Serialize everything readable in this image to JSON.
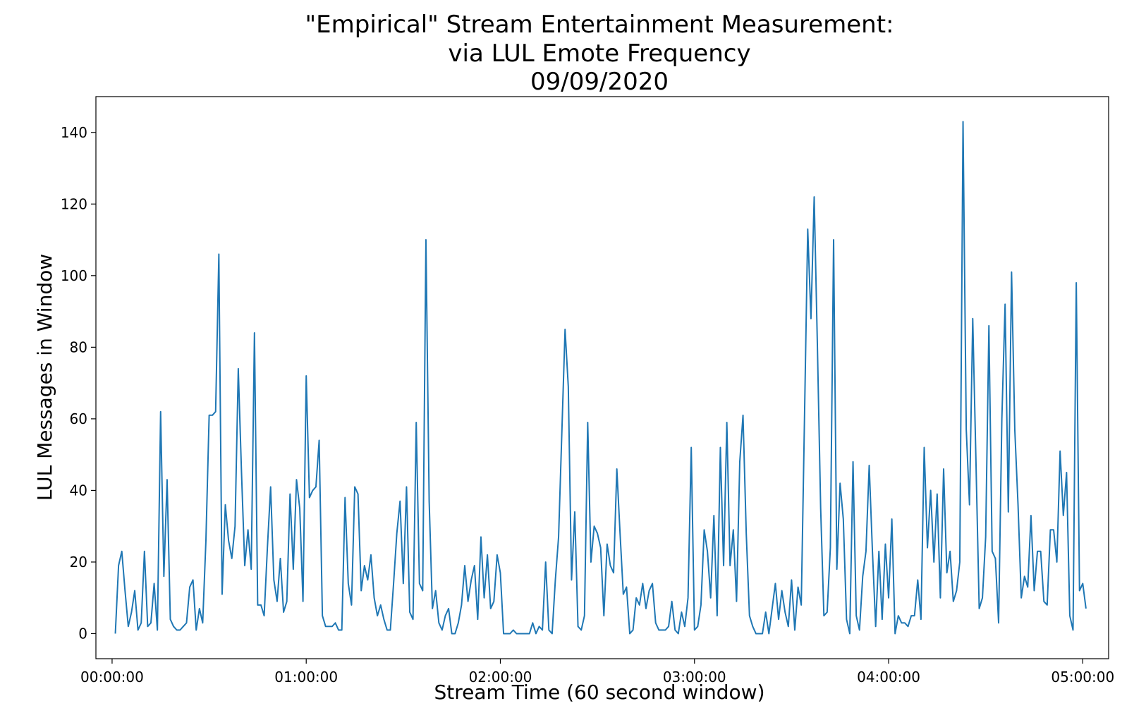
{
  "chart_data": {
    "type": "line",
    "title": "\"Empirical\" Stream Entertainment Measurement:\nvia LUL Emote Frequency\n09/09/2020",
    "title_lines": [
      "\"Empirical\" Stream Entertainment Measurement:",
      "via LUL Emote Frequency",
      "09/09/2020"
    ],
    "xlabel": "Stream Time (60 second window)",
    "ylabel": "LUL Messages in Window",
    "x_unit": "minutes since stream start",
    "xlim": [
      -5,
      308
    ],
    "ylim": [
      -7,
      150
    ],
    "x_ticks": [
      {
        "value": 0,
        "label": "00:00:00"
      },
      {
        "value": 60,
        "label": "01:00:00"
      },
      {
        "value": 120,
        "label": "02:00:00"
      },
      {
        "value": 180,
        "label": "03:00:00"
      },
      {
        "value": 240,
        "label": "04:00:00"
      },
      {
        "value": 300,
        "label": "05:00:00"
      }
    ],
    "y_ticks": [
      {
        "value": 0,
        "label": "0"
      },
      {
        "value": 20,
        "label": "20"
      },
      {
        "value": 40,
        "label": "40"
      },
      {
        "value": 60,
        "label": "60"
      },
      {
        "value": 80,
        "label": "80"
      },
      {
        "value": 100,
        "label": "100"
      },
      {
        "value": 120,
        "label": "120"
      },
      {
        "value": 140,
        "label": "140"
      }
    ],
    "grid": false,
    "series": [
      {
        "color": "#1f77b4",
        "x": [
          1,
          2,
          3,
          4,
          5,
          6,
          7,
          8,
          9,
          10,
          11,
          12,
          13,
          14,
          15,
          16,
          17,
          18,
          19,
          20,
          21,
          22,
          23,
          24,
          25,
          26,
          27,
          28,
          29,
          30,
          31,
          32,
          33,
          34,
          35,
          36,
          37,
          38,
          39,
          40,
          41,
          42,
          43,
          44,
          45,
          46,
          47,
          48,
          49,
          50,
          51,
          52,
          53,
          54,
          55,
          56,
          57,
          58,
          59,
          60,
          61,
          62,
          63,
          64,
          65,
          66,
          67,
          68,
          69,
          70,
          71,
          72,
          73,
          74,
          75,
          76,
          77,
          78,
          79,
          80,
          81,
          82,
          83,
          84,
          85,
          86,
          87,
          88,
          89,
          90,
          91,
          92,
          93,
          94,
          95,
          96,
          97,
          98,
          99,
          100,
          101,
          102,
          103,
          104,
          105,
          106,
          107,
          108,
          109,
          110,
          111,
          112,
          113,
          114,
          115,
          116,
          117,
          118,
          119,
          120,
          121,
          122,
          123,
          124,
          125,
          126,
          127,
          128,
          129,
          130,
          131,
          132,
          133,
          134,
          135,
          136,
          137,
          138,
          139,
          140,
          141,
          142,
          143,
          144,
          145,
          146,
          147,
          148,
          149,
          150,
          151,
          152,
          153,
          154,
          155,
          156,
          157,
          158,
          159,
          160,
          161,
          162,
          163,
          164,
          165,
          166,
          167,
          168,
          169,
          170,
          171,
          172,
          173,
          174,
          175,
          176,
          177,
          178,
          179,
          180,
          181,
          182,
          183,
          184,
          185,
          186,
          187,
          188,
          189,
          190,
          191,
          192,
          193,
          194,
          195,
          196,
          197,
          198,
          199,
          200,
          201,
          202,
          203,
          204,
          205,
          206,
          207,
          208,
          209,
          210,
          211,
          212,
          213,
          214,
          215,
          216,
          217,
          218,
          219,
          220,
          221,
          222,
          223,
          224,
          225,
          226,
          227,
          228,
          229,
          230,
          231,
          232,
          233,
          234,
          235,
          236,
          237,
          238,
          239,
          240,
          241,
          242,
          243,
          244,
          245,
          246,
          247,
          248,
          249,
          250,
          251,
          252,
          253,
          254,
          255,
          256,
          257,
          258,
          259,
          260,
          261,
          262,
          263,
          264,
          265,
          266,
          267,
          268,
          269,
          270,
          271,
          272,
          273,
          274,
          275,
          276,
          277,
          278,
          279,
          280,
          281,
          282,
          283,
          284,
          285,
          286,
          287,
          288,
          289,
          290,
          291,
          292,
          293,
          294,
          295,
          296,
          297,
          298,
          299,
          300,
          301
        ],
        "values": [
          0,
          19,
          23,
          12,
          2,
          6,
          12,
          1,
          3,
          23,
          2,
          3,
          14,
          1,
          62,
          16,
          43,
          4,
          2,
          1,
          1,
          2,
          3,
          13,
          15,
          1,
          7,
          3,
          26,
          61,
          61,
          62,
          106,
          11,
          36,
          26,
          21,
          30,
          74,
          45,
          19,
          29,
          18,
          84,
          8,
          8,
          5,
          24,
          41,
          15,
          9,
          21,
          6,
          9,
          39,
          18,
          43,
          35,
          9,
          72,
          38,
          40,
          41,
          54,
          5,
          2,
          2,
          2,
          3,
          1,
          1,
          38,
          14,
          8,
          41,
          39,
          12,
          19,
          15,
          22,
          10,
          5,
          8,
          4,
          1,
          1,
          14,
          28,
          37,
          14,
          41,
          6,
          4,
          59,
          14,
          12,
          110,
          37,
          7,
          12,
          3,
          1,
          5,
          7,
          0,
          0,
          3,
          8,
          19,
          9,
          15,
          19,
          4,
          27,
          10,
          22,
          7,
          9,
          22,
          17,
          0,
          0,
          0,
          1,
          0,
          0,
          0,
          0,
          0,
          3,
          0,
          2,
          1,
          20,
          1,
          0,
          15,
          27,
          56,
          85,
          69,
          15,
          34,
          2,
          1,
          5,
          59,
          20,
          30,
          28,
          24,
          5,
          25,
          19,
          17,
          46,
          28,
          11,
          13,
          0,
          1,
          10,
          8,
          14,
          7,
          12,
          14,
          3,
          1,
          1,
          1,
          2,
          9,
          1,
          0,
          6,
          2,
          10,
          52,
          1,
          2,
          8,
          29,
          23,
          10,
          33,
          5,
          52,
          19,
          59,
          19,
          29,
          9,
          48,
          61,
          28,
          5,
          2,
          0,
          0,
          0,
          6,
          0,
          7,
          14,
          4,
          12,
          6,
          2,
          15,
          1,
          13,
          8,
          60,
          113,
          88,
          122,
          80,
          35,
          5,
          6,
          24,
          110,
          18,
          42,
          32,
          4,
          0,
          48,
          5,
          1,
          16,
          23,
          47,
          23,
          2,
          23,
          4,
          25,
          10,
          32,
          0,
          5,
          3,
          3,
          2,
          5,
          5,
          15,
          4,
          52,
          24,
          40,
          20,
          39,
          10,
          46,
          17,
          23,
          9,
          12,
          20,
          143,
          57,
          36,
          88,
          48,
          7,
          10,
          27,
          86,
          23,
          21,
          3,
          60,
          92,
          34,
          101,
          57,
          36,
          10,
          16,
          13,
          33,
          12,
          23,
          23,
          9,
          8,
          29,
          29,
          20,
          51,
          33,
          45,
          5,
          1,
          98,
          12,
          14,
          7
        ]
      }
    ]
  }
}
